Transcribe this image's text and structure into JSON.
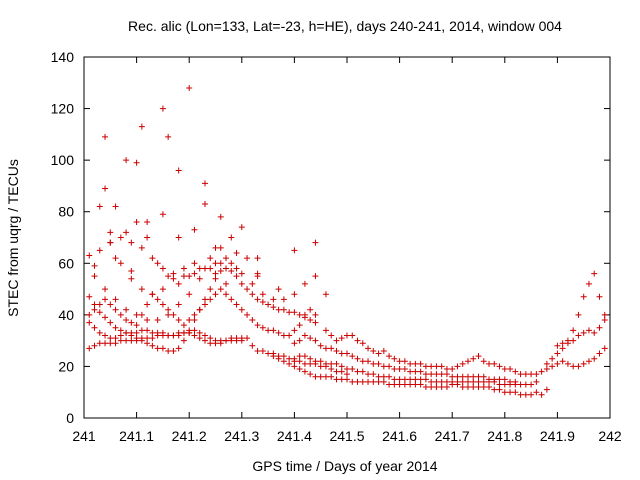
{
  "chart_data": {
    "type": "scatter",
    "title": "Rec. alic (Lon=133, Lat=-23, h=HE), days 240-241, 2014, window 004",
    "xlabel": "GPS time / Days of year 2014",
    "ylabel": "STEC from uqrg / TECUs",
    "xlim": [
      241,
      242
    ],
    "ylim": [
      0,
      140
    ],
    "x_ticks": [
      "241",
      "241.1",
      "241.2",
      "241.3",
      "241.4",
      "241.5",
      "241.6",
      "241.7",
      "241.8",
      "241.9",
      "242"
    ],
    "y_ticks": [
      "0",
      "20",
      "40",
      "60",
      "80",
      "100",
      "120",
      "140"
    ],
    "marker": "+",
    "color": "#cc0000",
    "grid": false,
    "series": [
      {
        "x": [
          241.01,
          241.02,
          241.03,
          241.04,
          241.05,
          241.06,
          241.07,
          241.08,
          241.09,
          241.1,
          241.11,
          241.12,
          241.13,
          241.14,
          241.15,
          241.16,
          241.17,
          241.18,
          241.19,
          241.2,
          241.21,
          241.22,
          241.23,
          241.24,
          241.25,
          241.26,
          241.27,
          241.28,
          241.29,
          241.3
        ],
        "y": [
          27,
          28,
          29,
          29,
          29,
          29,
          30,
          30,
          30,
          30,
          31,
          31,
          31,
          32,
          32,
          32,
          32,
          33,
          33,
          33,
          32,
          31,
          30,
          29,
          29,
          29,
          30,
          30,
          30,
          30
        ]
      },
      {
        "x": [
          241.01,
          241.02,
          241.03,
          241.04,
          241.05,
          241.06,
          241.07,
          241.08,
          241.09,
          241.1,
          241.11,
          241.12,
          241.13,
          241.14,
          241.15,
          241.16,
          241.17,
          241.18,
          241.19,
          241.2,
          241.21,
          241.22,
          241.23,
          241.24,
          241.25,
          241.26,
          241.27,
          241.28,
          241.29,
          241.3,
          241.31,
          241.32,
          241.33,
          241.34,
          241.35,
          241.36,
          241.37,
          241.38,
          241.39,
          241.4,
          241.41,
          241.42,
          241.43,
          241.44,
          241.45,
          241.46,
          241.47,
          241.48,
          241.49,
          241.5
        ],
        "y": [
          37,
          35,
          33,
          32,
          31,
          31,
          32,
          33,
          33,
          33,
          34,
          34,
          33,
          33,
          33,
          32,
          32,
          32,
          33,
          33,
          34,
          33,
          32,
          31,
          30,
          30,
          30,
          31,
          31,
          31,
          31,
          28,
          26,
          26,
          25,
          25,
          24,
          24,
          23,
          22,
          22,
          21,
          21,
          21,
          20,
          20,
          19,
          18,
          18,
          17
        ]
      },
      {
        "x": [
          241.36,
          241.37,
          241.38,
          241.39,
          241.4,
          241.41,
          241.42,
          241.43,
          241.44,
          241.45,
          241.46,
          241.47,
          241.48,
          241.49,
          241.5,
          241.51,
          241.52,
          241.53,
          241.54,
          241.55,
          241.56,
          241.57,
          241.58,
          241.59,
          241.6,
          241.61,
          241.62,
          241.63,
          241.64,
          241.65,
          241.66,
          241.67,
          241.68,
          241.69,
          241.7,
          241.71,
          241.72,
          241.73,
          241.74,
          241.75,
          241.76,
          241.77,
          241.78,
          241.79,
          241.8,
          241.81,
          241.82,
          241.83,
          241.84,
          241.85,
          241.86,
          241.87,
          241.88
        ],
        "y": [
          24,
          23,
          22,
          21,
          20,
          19,
          18,
          17,
          16,
          16,
          16,
          16,
          15,
          15,
          15,
          14,
          14,
          14,
          14,
          14,
          14,
          14,
          13,
          13,
          13,
          13,
          13,
          13,
          13,
          12,
          12,
          12,
          12,
          12,
          13,
          13,
          12,
          12,
          12,
          12,
          12,
          12,
          11,
          11,
          10,
          10,
          10,
          9,
          9,
          9,
          10,
          9,
          11
        ]
      },
      {
        "x": [
          241.4,
          241.41,
          241.42,
          241.43,
          241.44,
          241.45,
          241.46,
          241.47,
          241.48,
          241.49,
          241.5,
          241.51,
          241.52,
          241.53,
          241.54,
          241.55,
          241.56,
          241.57,
          241.58,
          241.59,
          241.6,
          241.61,
          241.62,
          241.63,
          241.64,
          241.65,
          241.66,
          241.67,
          241.68,
          241.69,
          241.7,
          241.71,
          241.72,
          241.73,
          241.74,
          241.75,
          241.76,
          241.77,
          241.78,
          241.79,
          241.8,
          241.81,
          241.82,
          241.83,
          241.84,
          241.85,
          241.86
        ],
        "y": [
          23,
          24,
          24,
          23,
          22,
          22,
          21,
          21,
          21,
          20,
          19,
          19,
          18,
          18,
          17,
          17,
          16,
          16,
          16,
          15,
          15,
          15,
          15,
          15,
          15,
          15,
          14,
          14,
          14,
          14,
          14,
          14,
          14,
          14,
          14,
          14,
          14,
          14,
          14,
          13,
          13,
          13,
          13,
          13,
          13,
          13,
          14
        ]
      },
      {
        "x": [
          241.4,
          241.41,
          241.42,
          241.43,
          241.44,
          241.45,
          241.46,
          241.47,
          241.48,
          241.49,
          241.5,
          241.51,
          241.52,
          241.53,
          241.54,
          241.55,
          241.56,
          241.57,
          241.58,
          241.59,
          241.6,
          241.61,
          241.62,
          241.63,
          241.64,
          241.65,
          241.66,
          241.67,
          241.68,
          241.69,
          241.7,
          241.71,
          241.72,
          241.73,
          241.74,
          241.75,
          241.76,
          241.77,
          241.78,
          241.79,
          241.8,
          241.81,
          241.82
        ],
        "y": [
          29,
          30,
          32,
          31,
          30,
          28,
          27,
          27,
          26,
          25,
          25,
          24,
          23,
          22,
          22,
          21,
          21,
          20,
          20,
          19,
          19,
          19,
          18,
          18,
          18,
          17,
          17,
          17,
          17,
          17,
          16,
          16,
          16,
          16,
          16,
          16,
          16,
          15,
          15,
          15,
          15,
          14,
          14
        ]
      },
      {
        "x": [
          241.46,
          241.47,
          241.48,
          241.49,
          241.5,
          241.51,
          241.52,
          241.53,
          241.54,
          241.55,
          241.56,
          241.57,
          241.58,
          241.59,
          241.6,
          241.61,
          241.62,
          241.63,
          241.64,
          241.65,
          241.66,
          241.67,
          241.68,
          241.69,
          241.7,
          241.71,
          241.72,
          241.73,
          241.74,
          241.75,
          241.76,
          241.77,
          241.78,
          241.79,
          241.8,
          241.81,
          241.82,
          241.83,
          241.84,
          241.85,
          241.86,
          241.87,
          241.88,
          241.89,
          241.9,
          241.91,
          241.92,
          241.93,
          241.94,
          241.95,
          241.96,
          241.97,
          241.98,
          241.99
        ],
        "y": [
          34,
          32,
          30,
          31,
          32,
          32,
          30,
          29,
          27,
          26,
          25,
          26,
          24,
          23,
          22,
          22,
          21,
          21,
          21,
          20,
          20,
          20,
          20,
          19,
          19,
          20,
          21,
          22,
          23,
          24,
          22,
          21,
          21,
          20,
          19,
          19,
          18,
          17,
          17,
          17,
          17,
          18,
          19,
          20,
          21,
          22,
          21,
          20,
          20,
          21,
          22,
          23,
          25,
          27
        ]
      },
      {
        "x": [
          241.88,
          241.89,
          241.9,
          241.91,
          241.92,
          241.93,
          241.94,
          241.95,
          241.96,
          241.97,
          241.98,
          241.99
        ],
        "y": [
          21,
          23,
          25,
          27,
          29,
          30,
          32,
          33,
          34,
          33,
          35,
          38
        ]
      },
      {
        "x": [
          241.9,
          241.91,
          241.92,
          241.93,
          241.94,
          241.95,
          241.96,
          241.97,
          241.98,
          241.99
        ],
        "y": [
          28,
          29,
          30,
          34,
          40,
          47,
          52,
          56,
          47,
          40
        ]
      },
      {
        "x": [
          241.01,
          241.02,
          241.03,
          241.04,
          241.05,
          241.06,
          241.07,
          241.08,
          241.09,
          241.1,
          241.11,
          241.12,
          241.13,
          241.14,
          241.15,
          241.16,
          241.17,
          241.18,
          241.19,
          241.2,
          241.21,
          241.22,
          241.23,
          241.24,
          241.25,
          241.26,
          241.27,
          241.28,
          241.29,
          241.3,
          241.31,
          241.32,
          241.33,
          241.34,
          241.35,
          241.36,
          241.37,
          241.38,
          241.39,
          241.4,
          241.41,
          241.42,
          241.43,
          241.44
        ],
        "y": [
          40,
          42,
          44,
          46,
          44,
          42,
          40,
          38,
          37,
          36,
          40,
          44,
          48,
          46,
          44,
          42,
          40,
          38,
          36,
          38,
          40,
          42,
          44,
          46,
          48,
          50,
          48,
          46,
          44,
          42,
          40,
          38,
          36,
          35,
          34,
          34,
          33,
          32,
          32,
          34,
          36,
          40,
          42,
          40
        ]
      },
      {
        "x": [
          241.01,
          241.02,
          241.03,
          241.04,
          241.05,
          241.06,
          241.07,
          241.08,
          241.09,
          241.1,
          241.11,
          241.12,
          241.13,
          241.14,
          241.15,
          241.16,
          241.17,
          241.18,
          241.19,
          241.2,
          241.21,
          241.22,
          241.23,
          241.24,
          241.25,
          241.26,
          241.27,
          241.28,
          241.29,
          241.3,
          241.31,
          241.32,
          241.33,
          241.34,
          241.35,
          241.36,
          241.37,
          241.38,
          241.39,
          241.4,
          241.41,
          241.42,
          241.43,
          241.44
        ],
        "y": [
          47,
          44,
          41,
          39,
          37,
          35,
          34,
          33,
          32,
          31,
          30,
          29,
          28,
          27,
          27,
          26,
          26,
          27,
          30,
          34,
          38,
          42,
          46,
          50,
          54,
          57,
          58,
          57,
          55,
          52,
          50,
          48,
          46,
          45,
          44,
          43,
          42,
          42,
          41,
          41,
          40,
          39,
          38,
          37
        ]
      },
      {
        "x": [
          241.02,
          241.04,
          241.06,
          241.08,
          241.1,
          241.12,
          241.14,
          241.16,
          241.18,
          241.2,
          241.22,
          241.24,
          241.26,
          241.28,
          241.3,
          241.32,
          241.34,
          241.36,
          241.38,
          241.4,
          241.42,
          241.44,
          241.46
        ],
        "y": [
          55,
          50,
          46,
          42,
          40,
          38,
          38,
          40,
          44,
          48,
          54,
          58,
          60,
          60,
          56,
          52,
          48,
          46,
          46,
          48,
          52,
          55,
          48
        ]
      },
      {
        "x": [
          241.01,
          241.03,
          241.05,
          241.07,
          241.09,
          241.11,
          241.13,
          241.15,
          241.17,
          241.19,
          241.21,
          241.23,
          241.25,
          241.27,
          241.29,
          241.31,
          241.33
        ],
        "y": [
          63,
          65,
          68,
          70,
          68,
          66,
          62,
          58,
          56,
          55,
          56,
          58,
          60,
          62,
          64,
          62,
          56
        ]
      },
      {
        "x": [
          241.03,
          241.05,
          241.07,
          241.09,
          241.11,
          241.13,
          241.15,
          241.17,
          241.19,
          241.21,
          241.23,
          241.25,
          241.27
        ],
        "y": [
          82,
          72,
          60,
          54,
          50,
          48,
          50,
          54,
          58,
          60,
          58,
          56,
          52
        ]
      },
      {
        "x": [
          241.04,
          241.06,
          241.08,
          241.1,
          241.12,
          241.14,
          241.16,
          241.18,
          241.2,
          241.22,
          241.24,
          241.26,
          241.28,
          241.3
        ],
        "y": [
          89,
          82,
          72,
          76,
          70,
          60,
          55,
          52,
          55,
          58,
          62,
          66,
          70,
          74
        ]
      },
      {
        "x": [
          241.04,
          241.08,
          241.11,
          241.15,
          241.18,
          241.2,
          241.23,
          241.26
        ],
        "y": [
          109,
          100,
          113,
          120,
          96,
          128,
          91,
          78
        ]
      },
      {
        "x": [
          241.05,
          241.1,
          241.16,
          241.23,
          241.33,
          241.4,
          241.44
        ],
        "y": [
          68,
          99,
          109,
          83,
          62,
          65,
          68
        ]
      },
      {
        "x": [
          241.02,
          241.06,
          241.09,
          241.12,
          241.15,
          241.18,
          241.21,
          241.25,
          241.29,
          241.33,
          241.37
        ],
        "y": [
          59,
          62,
          57,
          76,
          79,
          70,
          73,
          66,
          58,
          55,
          50
        ]
      }
    ]
  }
}
